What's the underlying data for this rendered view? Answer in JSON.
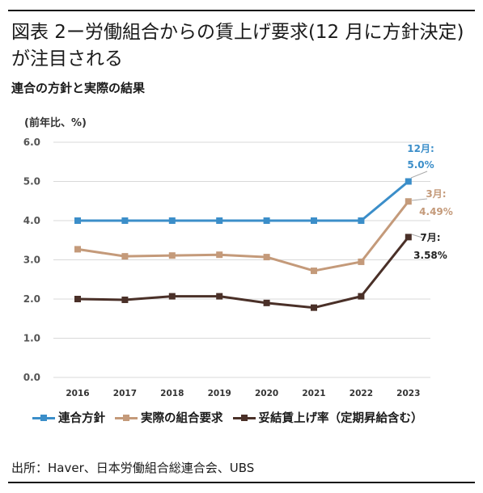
{
  "header": {
    "title": "図表 2ー労働組合からの賃上げ要求(12 月に方針決定)が注目される",
    "subtitle": "連合の方針と実際の結果"
  },
  "footer": {
    "source": "出所：Haver、日本労働組合総連合会、UBS"
  },
  "chart_data": {
    "type": "line",
    "unit_label": "(前年比、%)",
    "categories": [
      "2016",
      "2017",
      "2018",
      "2019",
      "2020",
      "2021",
      "2022",
      "2023"
    ],
    "y_ticks": [
      "0.0",
      "1.0",
      "2.0",
      "3.0",
      "4.0",
      "5.0",
      "6.0"
    ],
    "ylim": [
      0,
      6
    ],
    "grid": "horizontal",
    "legend_position": "bottom",
    "series": [
      {
        "name": "連合方針",
        "color": "#3b8ec9",
        "values": [
          4.0,
          4.0,
          4.0,
          4.0,
          4.0,
          4.0,
          4.0,
          5.0
        ],
        "annotation": {
          "label": "12月:",
          "value": "5.0%"
        }
      },
      {
        "name": "実際の組合要求",
        "color": "#c49a7a",
        "values": [
          3.27,
          3.09,
          3.11,
          3.13,
          3.07,
          2.72,
          2.95,
          4.49
        ],
        "annotation": {
          "label": "3月:",
          "value": "4.49%"
        }
      },
      {
        "name": "妥結賃上げ率（定期昇給含む）",
        "color": "#4a3028",
        "values": [
          2.0,
          1.98,
          2.07,
          2.07,
          1.9,
          1.78,
          2.07,
          3.58
        ],
        "annotation": {
          "label": "7月:",
          "value": "3.58%"
        }
      }
    ]
  }
}
